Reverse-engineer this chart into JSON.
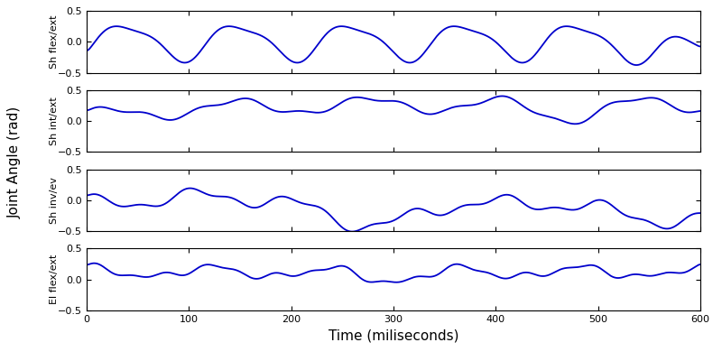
{
  "title": "",
  "xlabel": "Time (miliseconds)",
  "ylabel": "Joint Angle (rad)",
  "subplot_labels": [
    "Sh flex/ext",
    "Sh int/ext",
    "Sh inv/ev",
    "El flex/ext"
  ],
  "xlim": [
    0,
    600
  ],
  "ylim": [
    -0.5,
    0.5
  ],
  "yticks": [
    -0.5,
    0,
    0.5
  ],
  "xticks": [
    0,
    100,
    200,
    300,
    400,
    500,
    600
  ],
  "line_color": "#0000cc",
  "line_width": 1.3,
  "background_color": "#ffffff",
  "fig_width": 8.0,
  "fig_height": 4.0,
  "dpi": 100,
  "label_fontsize": 8,
  "xlabel_fontsize": 11,
  "ylabel_fontsize": 11,
  "tick_fontsize": 8
}
